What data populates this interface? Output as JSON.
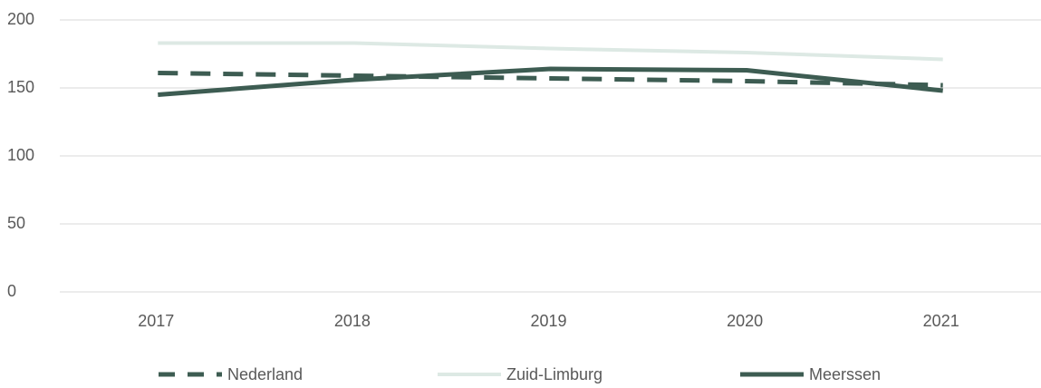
{
  "chart_data": {
    "type": "line",
    "categories": [
      "2017",
      "2018",
      "2019",
      "2020",
      "2021"
    ],
    "series": [
      {
        "name": "Nederland",
        "color": "#3d5c52",
        "line_style": "dashed",
        "values": [
          161,
          159,
          157,
          155,
          152
        ]
      },
      {
        "name": "Zuid-Limburg",
        "color": "#dde9e4",
        "line_style": "solid",
        "values": [
          183,
          183,
          179,
          176,
          171
        ]
      },
      {
        "name": "Meerssen",
        "color": "#3d5c52",
        "line_style": "solid",
        "values": [
          145,
          156,
          164,
          163,
          148
        ]
      }
    ],
    "ylim": [
      0,
      200
    ],
    "yticks": [
      0,
      50,
      100,
      150,
      200
    ],
    "grid": true,
    "legend": "bottom"
  }
}
